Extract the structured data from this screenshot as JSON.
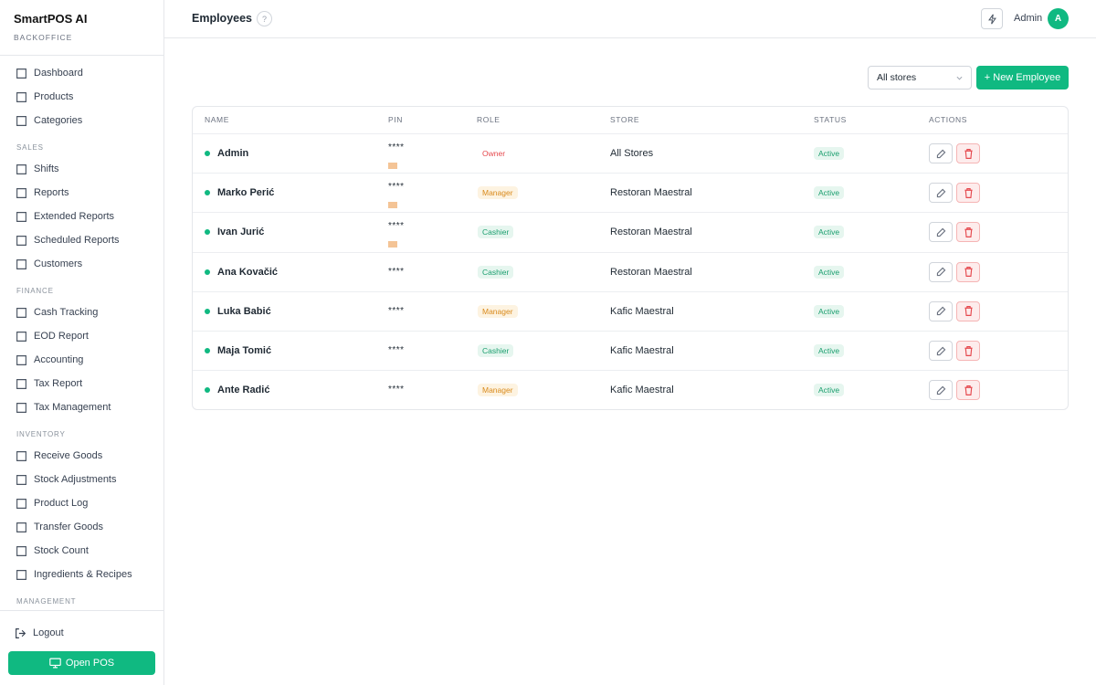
{
  "sidebar": {
    "brand": "SmartPOS AI",
    "subtitle": "BACKOFFICE",
    "groups": [
      {
        "items": [
          "Dashboard",
          "Products",
          "Categories"
        ]
      },
      {
        "title": "SALES",
        "items": [
          "Shifts",
          "Reports",
          "Extended Reports",
          "Scheduled Reports",
          "Customers"
        ]
      },
      {
        "title": "FINANCE",
        "items": [
          "Cash Tracking",
          "EOD Report",
          "Accounting",
          "Tax Report",
          "Tax Management"
        ]
      },
      {
        "title": "INVENTORY",
        "items": [
          "Receive Goods",
          "Stock Adjustments",
          "Product Log",
          "Transfer Goods",
          "Stock Count",
          "Ingredients & Recipes"
        ]
      },
      {
        "title": "MANAGEMENT",
        "items": []
      }
    ],
    "logout": "Logout",
    "open_pos": "Open POS"
  },
  "header": {
    "title": "Employees",
    "user": "Admin",
    "avatar": "A"
  },
  "toolbar": {
    "store_filter": "All stores",
    "new_button": "+ New Employee"
  },
  "table": {
    "columns": [
      "NAME",
      "PIN",
      "ROLE",
      "STORE",
      "STATUS",
      "ACTIONS"
    ],
    "rows": [
      {
        "name": "Admin",
        "pin": "****",
        "card": true,
        "role": "Owner",
        "role_color": "#e5484d",
        "role_bg": "#ffffff",
        "store": "All Stores",
        "status": "Active"
      },
      {
        "name": "Marko Perić",
        "pin": "****",
        "card": true,
        "role": "Manager",
        "role_color": "#d98a1c",
        "role_bg": "#fdf3e1",
        "store": "Restoran Maestral",
        "status": "Active"
      },
      {
        "name": "Ivan Jurić",
        "pin": "****",
        "card": true,
        "role": "Cashier",
        "role_color": "#1a9e6e",
        "role_bg": "#e6f6ef",
        "store": "Restoran Maestral",
        "status": "Active"
      },
      {
        "name": "Ana Kovačić",
        "pin": "****",
        "card": false,
        "role": "Cashier",
        "role_color": "#1a9e6e",
        "role_bg": "#e6f6ef",
        "store": "Restoran Maestral",
        "status": "Active"
      },
      {
        "name": "Luka Babić",
        "pin": "****",
        "card": false,
        "role": "Manager",
        "role_color": "#d98a1c",
        "role_bg": "#fdf3e1",
        "store": "Kafic Maestral",
        "status": "Active"
      },
      {
        "name": "Maja Tomić",
        "pin": "****",
        "card": false,
        "role": "Cashier",
        "role_color": "#1a9e6e",
        "role_bg": "#e6f6ef",
        "store": "Kafic Maestral",
        "status": "Active"
      },
      {
        "name": "Ante Radić",
        "pin": "****",
        "card": false,
        "role": "Manager",
        "role_color": "#d98a1c",
        "role_bg": "#fdf3e1",
        "store": "Kafic Maestral",
        "status": "Active"
      }
    ]
  }
}
